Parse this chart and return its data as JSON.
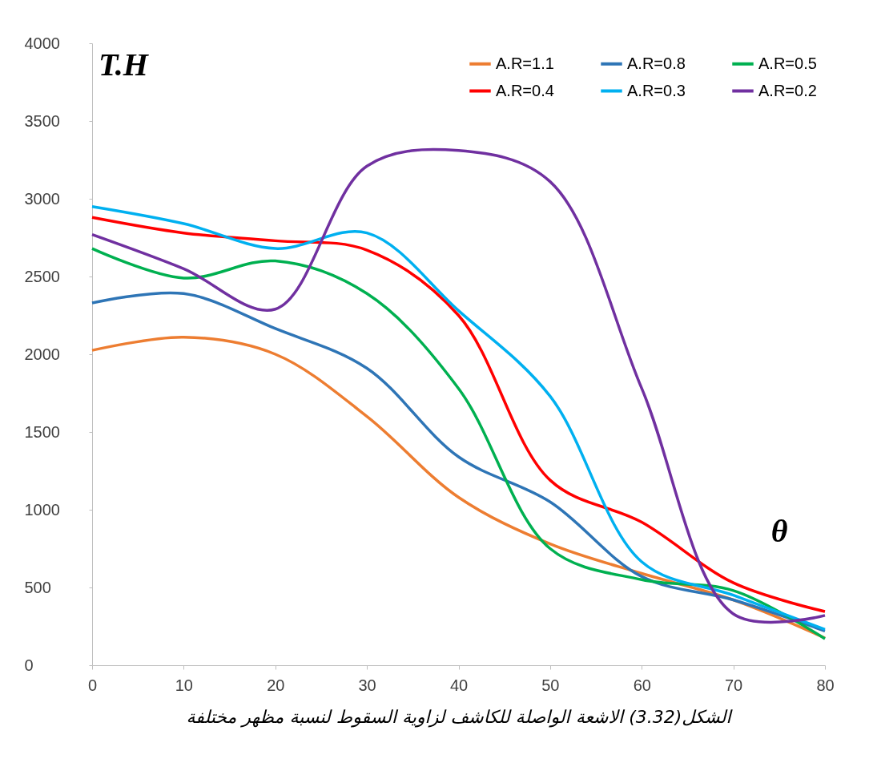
{
  "chart_data": {
    "type": "line",
    "title": "الشكل(3.32)  الاشعة الواصلة للكاشف لزاوية السقوط لنسبة مظهر مختلفة",
    "xlabel": "θ",
    "ylabel": "T.H",
    "x": [
      0,
      10,
      20,
      30,
      40,
      50,
      60,
      70,
      80
    ],
    "series": [
      {
        "name": "A.R=1.1",
        "color": "#ed7d31",
        "values": [
          2025,
          2110,
          2000,
          1600,
          1080,
          780,
          590,
          420,
          175
        ]
      },
      {
        "name": "A.R=0.8",
        "color": "#2e75b6",
        "values": [
          2330,
          2390,
          2165,
          1910,
          1340,
          1050,
          570,
          420,
          220
        ]
      },
      {
        "name": "A.R=0.5",
        "color": "#00b050",
        "values": [
          2680,
          2490,
          2600,
          2390,
          1780,
          750,
          550,
          480,
          170
        ]
      },
      {
        "name": "A.R=0.4",
        "color": "#ff0000",
        "values": [
          2880,
          2780,
          2730,
          2670,
          2250,
          1190,
          920,
          530,
          345
        ]
      },
      {
        "name": "A.R=0.3",
        "color": "#00b0f0",
        "values": [
          2950,
          2840,
          2680,
          2780,
          2280,
          1730,
          665,
          450,
          230
        ]
      },
      {
        "name": "A.R=0.2",
        "color": "#7030a0",
        "values": [
          2770,
          2550,
          2290,
          3210,
          3310,
          3110,
          1780,
          330,
          320
        ]
      }
    ],
    "xlim": [
      0,
      80
    ],
    "xticks": [
      0,
      10,
      20,
      30,
      40,
      50,
      60,
      70,
      80
    ],
    "ylim": [
      0,
      4000
    ],
    "yticks": [
      0,
      500,
      1000,
      1500,
      2000,
      2500,
      3000,
      3500,
      4000
    ],
    "grid": false,
    "legend": "top right",
    "marker": "none",
    "line_style": "solid"
  }
}
